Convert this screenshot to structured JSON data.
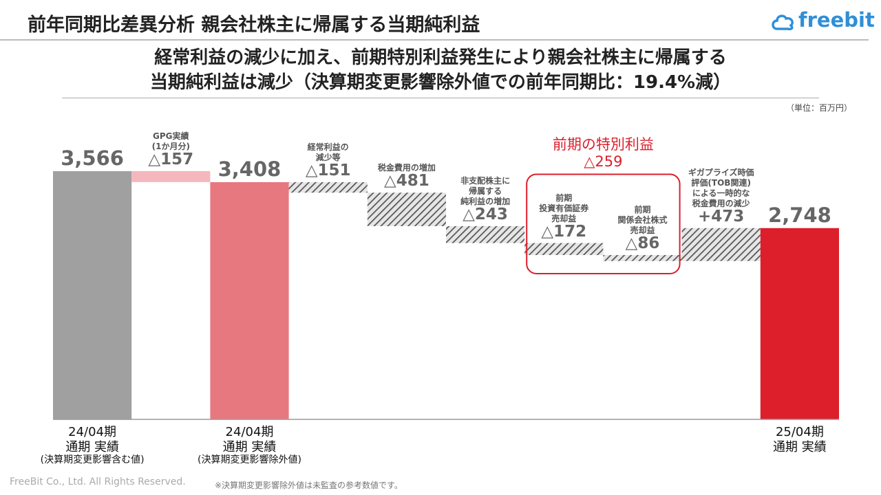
{
  "header": {
    "title": "前年同期比差異分析 親会社株主に帰属する当期純利益",
    "logo": "freebit",
    "subtitle": [
      "経常利益の減少に加え、前期特別利益発生により親会社株主に帰属する",
      "当期純利益は減少（決算期変更影響除外値での前年同期比：19.4%減）"
    ],
    "unit": "（単位：百万円）"
  },
  "chart_data": {
    "type": "waterfall",
    "categories": [
      [
        "24/04期",
        "通期 実績",
        "(決算期変更影響含む値)"
      ],
      [
        "GPG実績",
        "(1か月分)"
      ],
      [
        "24/04期",
        "通期 実績",
        "(決算期変更影響除外値)"
      ],
      [
        "経常利益の",
        "減少等"
      ],
      [
        "税金費用の増加"
      ],
      [
        "非支配株主に",
        "帰属する",
        "純利益の増加"
      ],
      [
        "前期",
        "投資有価証券",
        "売却益"
      ],
      [
        "前期",
        "関係会社株式",
        "売却益"
      ],
      [
        "ギガプライズ時価",
        "評価(TOB関連)",
        "による一時的な",
        "税金費用の減少"
      ],
      [
        "25/04期",
        "通期 実績"
      ]
    ],
    "values": [
      3566,
      -157,
      3408,
      -151,
      -481,
      -243,
      -172,
      -86,
      473,
      2748
    ],
    "value_labels": [
      "3,566",
      "△157",
      "3,408",
      "△151",
      "△481",
      "△243",
      "△172",
      "△86",
      "+473",
      "2,748"
    ],
    "measure": [
      "total",
      "relative",
      "total",
      "relative",
      "relative",
      "relative",
      "relative",
      "relative",
      "relative",
      "total"
    ],
    "colors": [
      "#a0a0a0",
      "#f5b7bd",
      "#e8787f",
      "#555555",
      "#555555",
      "#555555",
      "#555555",
      "#555555",
      "#555555",
      "#dc1f2b"
    ],
    "hatched": [
      false,
      false,
      false,
      true,
      true,
      true,
      true,
      true,
      true,
      false
    ],
    "ylim": [
      0,
      4000
    ],
    "group": {
      "title": "前期の特別利益",
      "value": -259,
      "value_label": "△259",
      "members": [
        6,
        7
      ],
      "color": "#dc1f2b"
    }
  },
  "footer": {
    "copyright": "FreeBit Co., Ltd. All Rights Reserved.",
    "note": "※決算期変更影響除外値は未監査の参考数値です。"
  }
}
